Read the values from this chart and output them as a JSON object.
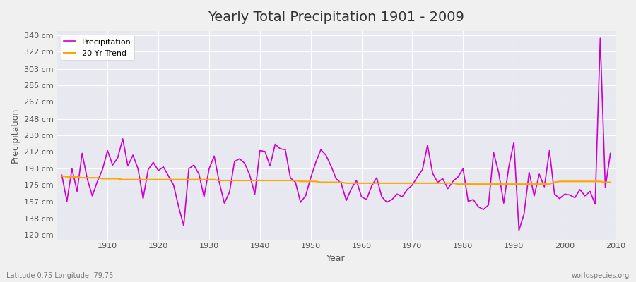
{
  "title": "Yearly Total Precipitation 1901 - 2009",
  "xlabel": "Year",
  "ylabel": "Precipitation",
  "subtitle": "Latitude 0.75 Longitude -79.75",
  "watermark": "worldspecies.org",
  "precipitation_color": "#cc00cc",
  "trend_color": "#ffa500",
  "bg_color": "#f0f0f0",
  "plot_bg": "#e8e8f0",
  "yticks": [
    120,
    138,
    157,
    175,
    193,
    212,
    230,
    248,
    267,
    285,
    303,
    322,
    340
  ],
  "ylim": [
    115,
    345
  ],
  "xlim": [
    1900,
    2010
  ],
  "years": [
    1901,
    1902,
    1903,
    1904,
    1905,
    1906,
    1907,
    1908,
    1909,
    1910,
    1911,
    1912,
    1913,
    1914,
    1915,
    1916,
    1917,
    1918,
    1919,
    1920,
    1921,
    1922,
    1923,
    1924,
    1925,
    1926,
    1927,
    1928,
    1929,
    1930,
    1931,
    1932,
    1933,
    1934,
    1935,
    1936,
    1937,
    1938,
    1939,
    1940,
    1941,
    1942,
    1943,
    1944,
    1945,
    1946,
    1947,
    1948,
    1949,
    1950,
    1951,
    1952,
    1953,
    1954,
    1955,
    1956,
    1957,
    1958,
    1959,
    1960,
    1961,
    1962,
    1963,
    1964,
    1965,
    1966,
    1967,
    1968,
    1969,
    1970,
    1971,
    1972,
    1973,
    1974,
    1975,
    1976,
    1977,
    1978,
    1979,
    1980,
    1981,
    1982,
    1983,
    1984,
    1985,
    1986,
    1987,
    1988,
    1989,
    1990,
    1991,
    1992,
    1993,
    1994,
    1995,
    1996,
    1997,
    1998,
    1999,
    2000,
    2001,
    2002,
    2003,
    2004,
    2005,
    2006,
    2007,
    2008,
    2009
  ],
  "precip": [
    186,
    157,
    193,
    168,
    210,
    182,
    163,
    179,
    192,
    213,
    197,
    205,
    226,
    196,
    208,
    193,
    160,
    192,
    200,
    191,
    195,
    185,
    175,
    151,
    130,
    193,
    197,
    187,
    162,
    193,
    207,
    178,
    155,
    167,
    201,
    204,
    199,
    186,
    165,
    213,
    212,
    196,
    220,
    215,
    214,
    183,
    178,
    156,
    163,
    183,
    200,
    214,
    208,
    196,
    182,
    177,
    158,
    171,
    180,
    162,
    159,
    174,
    183,
    162,
    156,
    159,
    165,
    162,
    170,
    175,
    184,
    192,
    219,
    188,
    178,
    182,
    171,
    179,
    184,
    193,
    157,
    159,
    151,
    148,
    153,
    211,
    189,
    155,
    195,
    222,
    125,
    143,
    189,
    163,
    187,
    173,
    213,
    165,
    160,
    165,
    164,
    161,
    170,
    163,
    168,
    154,
    337,
    172,
    210
  ],
  "trend": [
    185,
    184,
    184,
    184,
    183,
    183,
    183,
    183,
    182,
    182,
    182,
    182,
    181,
    181,
    181,
    181,
    181,
    181,
    181,
    181,
    181,
    181,
    181,
    181,
    181,
    181,
    181,
    181,
    181,
    181,
    181,
    180,
    180,
    180,
    180,
    180,
    180,
    180,
    180,
    180,
    180,
    180,
    180,
    180,
    180,
    180,
    180,
    179,
    179,
    179,
    179,
    178,
    178,
    178,
    178,
    178,
    177,
    177,
    177,
    177,
    177,
    177,
    177,
    177,
    177,
    177,
    177,
    177,
    177,
    177,
    177,
    177,
    177,
    177,
    177,
    177,
    177,
    177,
    176,
    176,
    176,
    176,
    176,
    176,
    176,
    176,
    176,
    176,
    176,
    176,
    176,
    176,
    176,
    176,
    176,
    176,
    176,
    178,
    179,
    179,
    179,
    179,
    179,
    179,
    179,
    179,
    179,
    178,
    178
  ]
}
